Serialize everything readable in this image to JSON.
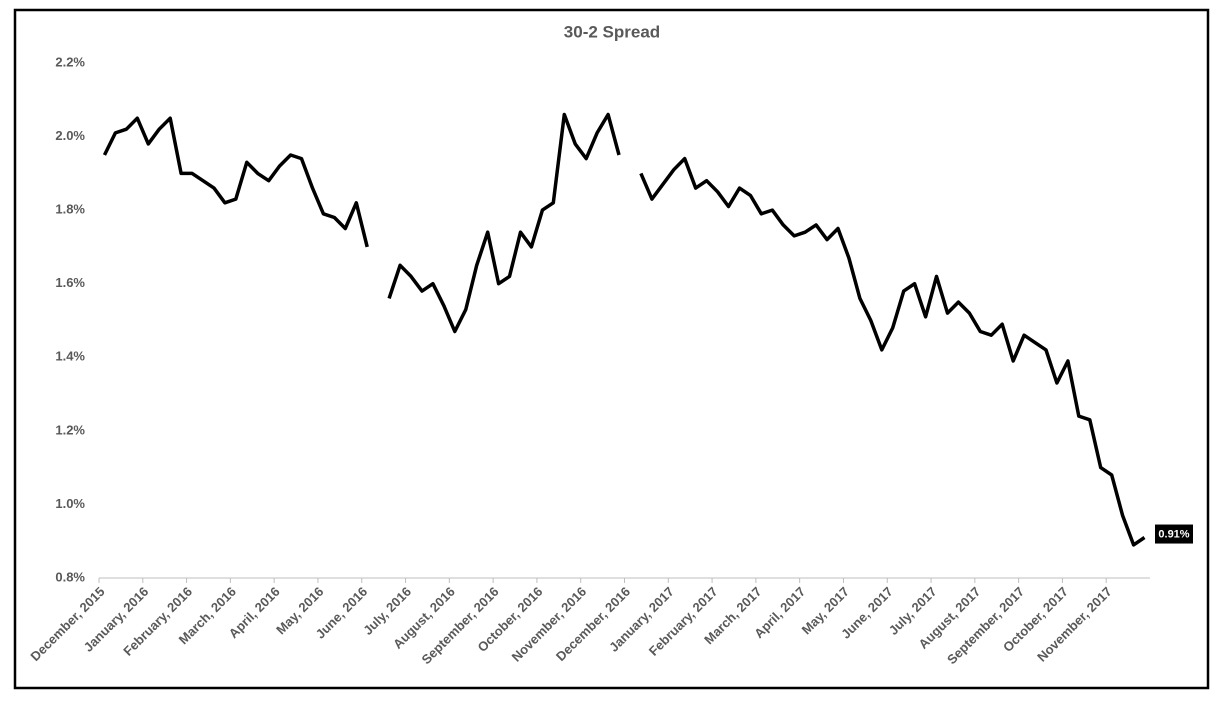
{
  "chart_data": {
    "type": "line",
    "title": "30-2 Spread",
    "xticks": [
      "December, 2015",
      "January, 2016",
      "February, 2016",
      "March, 2016",
      "April, 2016",
      "May, 2016",
      "June, 2016",
      "July, 2016",
      "August, 2016",
      "September, 2016",
      "October, 2016",
      "November, 2016",
      "December, 2016",
      "January, 2017",
      "February, 2017",
      "March, 2017",
      "April, 2017",
      "May, 2017",
      "June, 2017",
      "July, 2017",
      "August, 2017",
      "September, 2017",
      "October, 2017",
      "November, 2017"
    ],
    "x": [
      "December, 2015",
      "December, 2015",
      "December, 2015",
      "December, 2015",
      "January, 2016",
      "January, 2016",
      "January, 2016",
      "January, 2016",
      "February, 2016",
      "February, 2016",
      "February, 2016",
      "February, 2016",
      "March, 2016",
      "March, 2016",
      "March, 2016",
      "March, 2016",
      "April, 2016",
      "April, 2016",
      "April, 2016",
      "April, 2016",
      "May, 2016",
      "May, 2016",
      "May, 2016",
      "May, 2016",
      "June, 2016",
      "June, 2016",
      "June, 2016",
      "June, 2016",
      "July, 2016",
      "July, 2016",
      "July, 2016",
      "July, 2016",
      "August, 2016",
      "August, 2016",
      "August, 2016",
      "August, 2016",
      "September, 2016",
      "September, 2016",
      "September, 2016",
      "September, 2016",
      "October, 2016",
      "October, 2016",
      "October, 2016",
      "October, 2016",
      "November, 2016",
      "November, 2016",
      "November, 2016",
      "November, 2016",
      "December, 2016",
      "December, 2016",
      "December, 2016",
      "December, 2016",
      "January, 2017",
      "January, 2017",
      "January, 2017",
      "January, 2017",
      "February, 2017",
      "February, 2017",
      "February, 2017",
      "February, 2017",
      "March, 2017",
      "March, 2017",
      "March, 2017",
      "March, 2017",
      "April, 2017",
      "April, 2017",
      "April, 2017",
      "April, 2017",
      "May, 2017",
      "May, 2017",
      "May, 2017",
      "May, 2017",
      "June, 2017",
      "June, 2017",
      "June, 2017",
      "June, 2017",
      "July, 2017",
      "July, 2017",
      "July, 2017",
      "July, 2017",
      "August, 2017",
      "August, 2017",
      "August, 2017",
      "August, 2017",
      "September, 2017",
      "September, 2017",
      "September, 2017",
      "September, 2017",
      "October, 2017",
      "October, 2017",
      "October, 2017",
      "October, 2017",
      "November, 2017",
      "November, 2017",
      "November, 2017",
      "November, 2017"
    ],
    "series": [
      {
        "color": "#000000",
        "values": [
          1.95,
          2.01,
          2.02,
          2.05,
          1.98,
          2.02,
          2.05,
          1.9,
          1.9,
          1.88,
          1.86,
          1.82,
          1.83,
          1.93,
          1.9,
          1.88,
          1.92,
          1.95,
          1.94,
          1.86,
          1.79,
          1.78,
          1.75,
          1.82,
          1.7,
          null,
          1.56,
          1.65,
          1.62,
          1.58,
          1.6,
          1.54,
          1.47,
          1.53,
          1.65,
          1.74,
          1.6,
          1.62,
          1.74,
          1.7,
          1.8,
          1.82,
          2.06,
          1.98,
          1.94,
          2.01,
          2.06,
          1.95,
          null,
          1.9,
          1.83,
          1.87,
          1.91,
          1.94,
          1.86,
          1.88,
          1.85,
          1.81,
          1.86,
          1.84,
          1.79,
          1.8,
          1.76,
          1.73,
          1.74,
          1.76,
          1.72,
          1.75,
          1.67,
          1.56,
          1.5,
          1.42,
          1.48,
          1.58,
          1.6,
          1.51,
          1.62,
          1.52,
          1.55,
          1.52,
          1.47,
          1.46,
          1.49,
          1.39,
          1.46,
          1.44,
          1.42,
          1.33,
          1.39,
          1.24,
          1.23,
          1.1,
          1.08,
          0.97,
          0.89,
          0.91
        ],
        "value_labels": [
          null,
          null,
          null,
          null,
          null,
          null,
          null,
          null,
          null,
          null,
          null,
          null,
          null,
          null,
          null,
          null,
          null,
          null,
          null,
          null,
          null,
          null,
          null,
          null,
          null,
          null,
          null,
          null,
          null,
          null,
          null,
          null,
          null,
          null,
          null,
          null,
          null,
          null,
          null,
          null,
          null,
          null,
          null,
          null,
          null,
          null,
          null,
          null,
          null,
          null,
          null,
          null,
          null,
          null,
          null,
          null,
          null,
          null,
          null,
          null,
          null,
          null,
          null,
          null,
          null,
          null,
          null,
          null,
          null,
          null,
          null,
          null,
          null,
          null,
          null,
          null,
          null,
          null,
          null,
          null,
          null,
          null,
          null,
          null,
          null,
          null,
          null,
          null,
          null,
          null,
          null,
          null,
          null,
          null,
          null,
          "0.91%"
        ]
      }
    ],
    "ylim": [
      0.8,
      2.2
    ],
    "yticks": [
      {
        "value": 0.8,
        "label": "0.8%"
      },
      {
        "value": 1.0,
        "label": "1.0%"
      },
      {
        "value": 1.2,
        "label": "1.2%"
      },
      {
        "value": 1.4,
        "label": "1.4%"
      },
      {
        "value": 1.6,
        "label": "1.6%"
      },
      {
        "value": 1.8,
        "label": "1.8%"
      },
      {
        "value": 2.0,
        "label": "2.0%"
      },
      {
        "value": 2.2,
        "label": "2.2%"
      }
    ],
    "grid": false
  }
}
